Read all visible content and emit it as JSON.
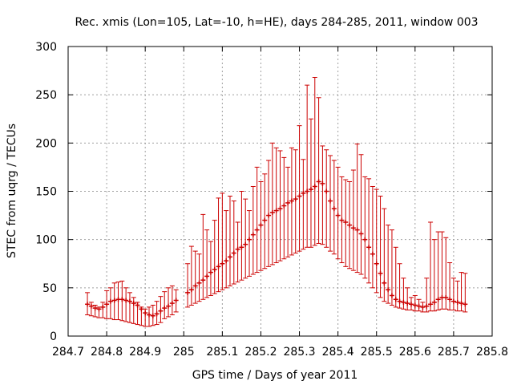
{
  "chart_data": {
    "type": "scatter",
    "title": "Rec. xmis (Lon=105, Lat=-10, h=HE), days 284-285, 2011, window 003",
    "xlabel": "GPS time / Days of year 2011",
    "ylabel": "STEC from uqrg / TECUs",
    "xlim": [
      284.7,
      285.8
    ],
    "ylim": [
      0,
      300
    ],
    "xticks": [
      284.7,
      284.8,
      284.9,
      285.0,
      285.1,
      285.2,
      285.3,
      285.4,
      285.5,
      285.6,
      285.7,
      285.8
    ],
    "xtick_labels": [
      "284.7",
      "284.8",
      "284.9",
      "285",
      "285.1",
      "285.2",
      "285.3",
      "285.4",
      "285.5",
      "285.6",
      "285.7",
      "285.8"
    ],
    "yticks": [
      0,
      50,
      100,
      150,
      200,
      250,
      300
    ],
    "ytick_labels": [
      "0",
      "50",
      "100",
      "150",
      "200",
      "250",
      "300"
    ],
    "grid": true,
    "color": "#cc0000",
    "series": [
      {
        "name": "STEC",
        "style": "points with vertical error bars",
        "x": [
          284.75,
          284.76,
          284.77,
          284.78,
          284.79,
          284.8,
          284.81,
          284.82,
          284.83,
          284.84,
          284.85,
          284.86,
          284.87,
          284.88,
          284.89,
          284.9,
          284.91,
          284.92,
          284.93,
          284.94,
          284.95,
          284.96,
          284.97,
          284.98,
          285.01,
          285.02,
          285.03,
          285.04,
          285.05,
          285.06,
          285.07,
          285.08,
          285.09,
          285.1,
          285.11,
          285.12,
          285.13,
          285.14,
          285.15,
          285.16,
          285.17,
          285.18,
          285.19,
          285.2,
          285.21,
          285.22,
          285.23,
          285.24,
          285.25,
          285.26,
          285.27,
          285.28,
          285.29,
          285.3,
          285.31,
          285.32,
          285.33,
          285.34,
          285.35,
          285.36,
          285.37,
          285.38,
          285.39,
          285.4,
          285.41,
          285.42,
          285.43,
          285.44,
          285.45,
          285.46,
          285.47,
          285.48,
          285.49,
          285.5,
          285.51,
          285.52,
          285.53,
          285.54,
          285.55,
          285.56,
          285.57,
          285.58,
          285.59,
          285.6,
          285.61,
          285.62,
          285.63,
          285.64,
          285.65,
          285.66,
          285.67,
          285.68,
          285.69,
          285.7,
          285.71,
          285.72,
          285.73
        ],
        "y": [
          33,
          31,
          29,
          28,
          30,
          33,
          36,
          37,
          38,
          38,
          37,
          36,
          34,
          32,
          28,
          24,
          22,
          21,
          23,
          26,
          29,
          31,
          34,
          37,
          45,
          48,
          52,
          55,
          58,
          62,
          66,
          69,
          72,
          75,
          78,
          82,
          86,
          90,
          92,
          95,
          100,
          105,
          110,
          115,
          120,
          125,
          128,
          130,
          132,
          135,
          138,
          140,
          142,
          145,
          148,
          150,
          152,
          155,
          160,
          158,
          150,
          140,
          132,
          125,
          120,
          118,
          115,
          112,
          110,
          106,
          100,
          92,
          85,
          75,
          65,
          55,
          48,
          42,
          38,
          36,
          35,
          34,
          33,
          32,
          31,
          30,
          31,
          33,
          35,
          38,
          40,
          40,
          38,
          36,
          35,
          34,
          33
        ],
        "ylow": [
          22,
          21,
          20,
          19,
          19,
          18,
          18,
          17,
          17,
          16,
          15,
          14,
          13,
          12,
          11,
          10,
          10,
          11,
          12,
          14,
          18,
          20,
          22,
          25,
          30,
          32,
          34,
          36,
          38,
          40,
          42,
          44,
          46,
          48,
          50,
          52,
          54,
          56,
          58,
          60,
          62,
          64,
          66,
          68,
          70,
          72,
          74,
          76,
          78,
          80,
          82,
          84,
          86,
          88,
          90,
          92,
          92,
          94,
          96,
          95,
          92,
          88,
          85,
          80,
          76,
          72,
          70,
          68,
          66,
          64,
          60,
          55,
          50,
          45,
          40,
          36,
          34,
          32,
          30,
          29,
          28,
          27,
          27,
          26,
          26,
          25,
          25,
          26,
          26,
          27,
          28,
          28,
          27,
          27,
          26,
          26,
          25
        ],
        "yhigh": [
          45,
          35,
          32,
          30,
          35,
          47,
          50,
          55,
          56,
          57,
          50,
          45,
          40,
          35,
          30,
          28,
          30,
          32,
          36,
          41,
          46,
          50,
          52,
          48,
          75,
          93,
          88,
          85,
          126,
          110,
          98,
          120,
          143,
          148,
          130,
          145,
          140,
          118,
          150,
          142,
          130,
          155,
          175,
          160,
          168,
          182,
          200,
          195,
          192,
          185,
          175,
          195,
          193,
          218,
          183,
          260,
          225,
          268,
          247,
          197,
          193,
          187,
          182,
          175,
          165,
          162,
          160,
          172,
          199,
          188,
          165,
          163,
          155,
          152,
          145,
          132,
          115,
          110,
          92,
          75,
          60,
          50,
          40,
          42,
          38,
          35,
          60,
          118,
          100,
          108,
          108,
          102,
          76,
          60,
          57,
          66,
          65
        ]
      }
    ]
  }
}
